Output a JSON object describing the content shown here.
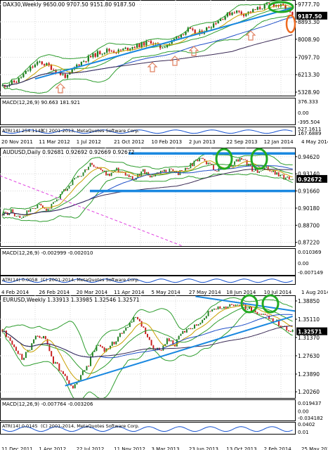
{
  "colors": {
    "background": "#ffffff",
    "grid": "#d8d8d8",
    "frame": "#000000",
    "candle_up": "#1e7d1e",
    "candle_down": "#c81e1e",
    "bollinger": "#2e9d2e",
    "ma_fast": "#c8a000",
    "ma_mid": "#2050c8",
    "ma_slow": "#3a2a55",
    "trendline": "#1a88e0",
    "highlight_green": "#22aa22",
    "highlight_orange": "#ee6a20",
    "arrow_orange": "#e08060",
    "macd_bar": "#a0a0a0",
    "macd_signal": "#e02020",
    "atr_line": "#1a55d0",
    "pink_dash": "#e040e0",
    "price_label_bg": "#000000",
    "price_label_fg": "#ffffff"
  },
  "chart_data": [
    {
      "type": "candlestick",
      "symbol_header": "DAX30,Weekly  9650.00 9707.50 9151.80 9187.50",
      "period": "Weekly",
      "ohlc_last": {
        "open": 9650.0,
        "high": 9707.5,
        "low": 9151.8,
        "close": 9187.5
      },
      "current_price_label": "9187.50",
      "ylim": [
        5150,
        10000
      ],
      "y_ticks": [
        "9777.70",
        "8893.30",
        "8008.90",
        "7097.70",
        "6213.30",
        "5328.90"
      ],
      "y_tick_values": [
        9777.7,
        8893.3,
        8008.9,
        7097.7,
        6213.3,
        5328.9
      ],
      "x_ticks": [
        "20 Nov 2011",
        "11 Mar 2012",
        "1 Jul 2012",
        "21 Oct 2012",
        "10 Feb 2013",
        "2 Jun 2013",
        "22 Sep 2013",
        "12 Jan 2014",
        "4 May 2014"
      ],
      "close_path": [
        [
          0,
          5650
        ],
        [
          6,
          5880
        ],
        [
          12,
          6550
        ],
        [
          16,
          6850
        ],
        [
          20,
          6650
        ],
        [
          25,
          6250
        ],
        [
          28,
          6100
        ],
        [
          32,
          6700
        ],
        [
          36,
          7000
        ],
        [
          41,
          7300
        ],
        [
          45,
          7450
        ],
        [
          50,
          7400
        ],
        [
          55,
          7600
        ],
        [
          60,
          7750
        ],
        [
          64,
          7900
        ],
        [
          68,
          7600
        ],
        [
          72,
          7800
        ],
        [
          76,
          8200
        ],
        [
          80,
          8500
        ],
        [
          84,
          8250
        ],
        [
          88,
          8550
        ],
        [
          92,
          8900
        ],
        [
          96,
          9200
        ],
        [
          100,
          9450
        ],
        [
          104,
          9300
        ],
        [
          108,
          9450
        ],
        [
          112,
          9650
        ],
        [
          116,
          9800
        ],
        [
          119,
          9720
        ],
        [
          122,
          9600
        ],
        [
          125,
          9187
        ]
      ],
      "trendline": [
        [
          14,
          6000
        ],
        [
          125,
          9600
        ]
      ],
      "indicator": {
        "label": "MACD(12,26,9) 90.663 181.921",
        "ticks": [
          "376.333",
          "0.00",
          "-395.504"
        ]
      },
      "atr": {
        "label": "ATR(14) 254.1143",
        "ticks": [
          "527.1611",
          "167.6889"
        ]
      },
      "copyright": "(C) 2001-2013, MetaQuotes Software Corp."
    },
    {
      "type": "candlestick",
      "symbol_header": "AUDUSD,Daily  0.92681 0.92692 0.92669 0.92672",
      "period": "Daily",
      "ohlc_last": {
        "open": 0.92681,
        "high": 0.92692,
        "low": 0.92669,
        "close": 0.92672
      },
      "current_price_label": "0.92672",
      "ylim": [
        0.869,
        0.954
      ],
      "y_ticks": [
        "0.94620",
        "0.93140",
        "0.91660",
        "0.90180",
        "0.88700",
        "0.87220"
      ],
      "y_tick_values": [
        0.9462,
        0.9314,
        0.9166,
        0.9018,
        0.887,
        0.8722
      ],
      "x_ticks": [
        "4 Feb 2014",
        "26 Feb 2014",
        "20 Mar 2014",
        "11 Apr 2014",
        "5 May 2014",
        "27 May 2014",
        "18 Jun 2014",
        "10 Jul 2014",
        "1 Aug 2014"
      ],
      "close_path": [
        [
          0,
          0.896
        ],
        [
          5,
          0.899
        ],
        [
          10,
          0.893
        ],
        [
          15,
          0.899
        ],
        [
          20,
          0.905
        ],
        [
          25,
          0.898
        ],
        [
          30,
          0.907
        ],
        [
          35,
          0.916
        ],
        [
          40,
          0.925
        ],
        [
          45,
          0.93
        ],
        [
          50,
          0.94
        ],
        [
          55,
          0.935
        ],
        [
          60,
          0.93
        ],
        [
          65,
          0.935
        ],
        [
          70,
          0.932
        ],
        [
          75,
          0.927
        ],
        [
          80,
          0.934
        ],
        [
          85,
          0.929
        ],
        [
          90,
          0.932
        ],
        [
          95,
          0.935
        ],
        [
          100,
          0.932
        ],
        [
          105,
          0.937
        ],
        [
          110,
          0.942
        ],
        [
          114,
          0.944
        ],
        [
          118,
          0.939
        ],
        [
          122,
          0.935
        ],
        [
          126,
          0.936
        ],
        [
          130,
          0.939
        ],
        [
          134,
          0.944
        ],
        [
          138,
          0.942
        ],
        [
          142,
          0.935
        ],
        [
          146,
          0.933
        ],
        [
          150,
          0.936
        ],
        [
          154,
          0.933
        ],
        [
          158,
          0.929
        ],
        [
          162,
          0.928
        ],
        [
          165,
          0.9267
        ]
      ],
      "support_level": 0.9166,
      "resistance_level": 0.949,
      "indicator": {
        "label": "MACD(12,26,9) -0.002999 -0.002010",
        "ticks": [
          "0.010369",
          "0.00",
          "-0.007149"
        ]
      },
      "atr": {
        "label": "ATR(14) 0.0058",
        "ticks": []
      },
      "copyright": "(C) 2001-2014, MetaQuotes Software Corp."
    },
    {
      "type": "candlestick",
      "symbol_header": "EURUSD,Weekly  1.33913 1.33985 1.32546 1.32571",
      "period": "Weekly",
      "ohlc_last": {
        "open": 1.33913,
        "high": 1.33985,
        "low": 1.32546,
        "close": 1.32571
      },
      "current_price_label": "1.32571",
      "ylim": [
        1.19,
        1.4
      ],
      "y_ticks": [
        "1.38850",
        "1.35110",
        "1.31370",
        "1.27630",
        "1.23890",
        "1.20260"
      ],
      "y_tick_values": [
        1.3885,
        1.3511,
        1.3137,
        1.2763,
        1.2389,
        1.2026
      ],
      "x_ticks": [
        "11 Dec 2011",
        "1 Apr 2012",
        "22 Jul 2012",
        "11 Nov 2012",
        "3 Mar 2013",
        "23 Jun 2013",
        "13 Oct 2013",
        "2 Feb 2014",
        "25 May 2014"
      ],
      "close_path": [
        [
          0,
          1.33
        ],
        [
          5,
          1.3
        ],
        [
          10,
          1.27
        ],
        [
          14,
          1.29
        ],
        [
          18,
          1.32
        ],
        [
          22,
          1.31
        ],
        [
          26,
          1.265
        ],
        [
          30,
          1.245
        ],
        [
          33,
          1.225
        ],
        [
          36,
          1.21
        ],
        [
          40,
          1.235
        ],
        [
          44,
          1.26
        ],
        [
          48,
          1.3
        ],
        [
          52,
          1.29
        ],
        [
          56,
          1.3
        ],
        [
          60,
          1.32
        ],
        [
          64,
          1.34
        ],
        [
          68,
          1.355
        ],
        [
          72,
          1.33
        ],
        [
          76,
          1.295
        ],
        [
          80,
          1.285
        ],
        [
          84,
          1.31
        ],
        [
          88,
          1.3
        ],
        [
          92,
          1.325
        ],
        [
          96,
          1.335
        ],
        [
          100,
          1.345
        ],
        [
          104,
          1.36
        ],
        [
          108,
          1.375
        ],
        [
          112,
          1.37
        ],
        [
          116,
          1.382
        ],
        [
          120,
          1.385
        ],
        [
          124,
          1.375
        ],
        [
          128,
          1.37
        ],
        [
          132,
          1.36
        ],
        [
          136,
          1.355
        ],
        [
          140,
          1.345
        ],
        [
          144,
          1.335
        ],
        [
          148,
          1.3257
        ]
      ],
      "trendline": [
        [
          32,
          1.215
        ],
        [
          148,
          1.357
        ]
      ],
      "upper_trendline": [
        [
          120,
          1.395
        ],
        [
          148,
          1.388
        ]
      ],
      "indicator": {
        "label": "MACD(12,26,9) -0.007764 -0.003206",
        "ticks": [
          "0.019437",
          "0.00",
          "-0.034182"
        ]
      },
      "atr": {
        "label": "ATR(14) 0.0145",
        "ticks": [
          "0.0402",
          "0.01"
        ]
      },
      "copyright": "(C) 2001-2014, MetaQuotes Software Corp."
    }
  ]
}
